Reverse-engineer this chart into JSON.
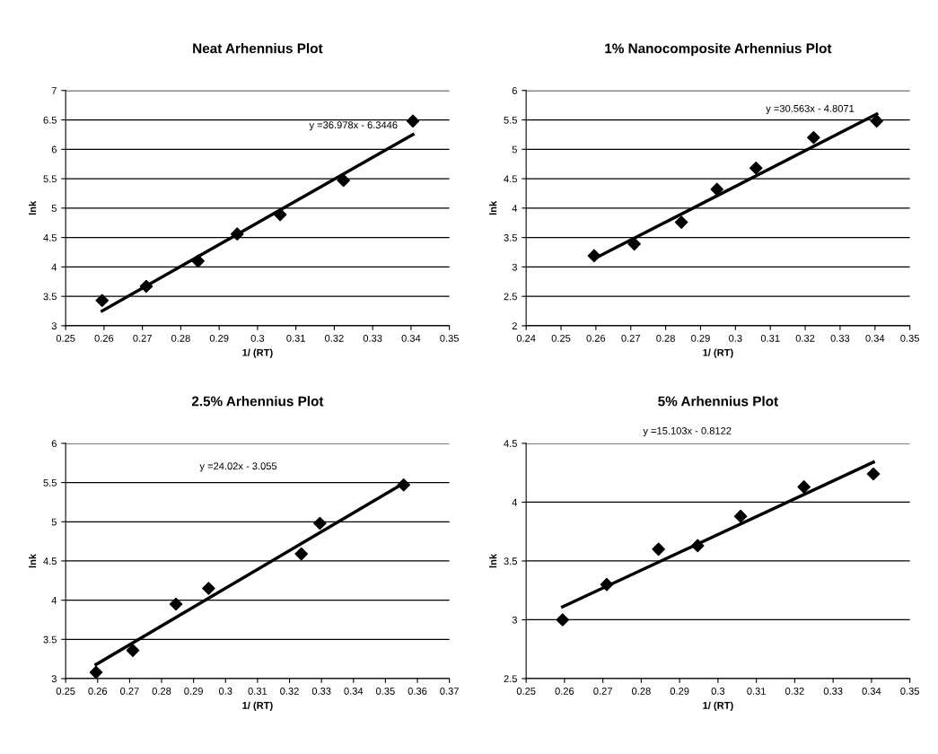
{
  "chart_data": [
    {
      "type": "scatter",
      "title": "Neat Arhennius Plot",
      "xlabel": "1/ (RT)",
      "ylabel": "lnk",
      "xlim": [
        0.25,
        0.35
      ],
      "xticks": [
        0.25,
        0.26,
        0.27,
        0.28,
        0.29,
        0.3,
        0.31,
        0.32,
        0.33,
        0.34,
        0.35
      ],
      "ylim": [
        3,
        7
      ],
      "yticks": [
        3,
        3.5,
        4,
        4.5,
        5,
        5.5,
        6,
        6.5,
        7
      ],
      "grid": "y",
      "legend": false,
      "marker": "diamond",
      "series": [
        {
          "color": "#000000",
          "x": [
            0.2595,
            0.271,
            0.2845,
            0.2947,
            0.3059,
            0.3224,
            0.3405
          ],
          "values": [
            3.43,
            3.67,
            4.1,
            4.56,
            4.89,
            5.47,
            6.48
          ]
        },
        {
          "type": "line",
          "color": "#000000",
          "marker": "none",
          "line_style": "solid",
          "x": [
            0.2595,
            0.3405
          ],
          "values": [
            3.25,
            6.25
          ]
        }
      ],
      "annotations": [
        "y =36.978x - 6.3446"
      ]
    },
    {
      "type": "scatter",
      "title": "1% Nanocomposite Arhennius Plot",
      "xlabel": "1/ (RT)",
      "ylabel": "lnk",
      "xlim": [
        0.24,
        0.35
      ],
      "xticks": [
        0.24,
        0.25,
        0.26,
        0.27,
        0.28,
        0.29,
        0.3,
        0.31,
        0.32,
        0.33,
        0.34,
        0.35
      ],
      "ylim": [
        2,
        6
      ],
      "yticks": [
        2,
        2.5,
        3,
        3.5,
        4,
        4.5,
        5,
        5.5,
        6
      ],
      "grid": "y",
      "legend": false,
      "marker": "diamond",
      "series": [
        {
          "color": "#000000",
          "x": [
            0.2595,
            0.271,
            0.2845,
            0.2947,
            0.3059,
            0.3224,
            0.3405
          ],
          "values": [
            3.19,
            3.39,
            3.76,
            4.32,
            4.68,
            5.2,
            5.48
          ]
        },
        {
          "type": "line",
          "color": "#000000",
          "marker": "none",
          "line_style": "solid",
          "x": [
            0.2595,
            0.3405
          ],
          "values": [
            3.14,
            5.6
          ]
        }
      ],
      "annotations": [
        "y =30.563x - 4.8071"
      ]
    },
    {
      "type": "scatter",
      "title": "2.5% Arhennius Plot",
      "xlabel": "1/ (RT)",
      "ylabel": "lnk",
      "xlim": [
        0.25,
        0.37
      ],
      "xticks": [
        0.25,
        0.26,
        0.27,
        0.28,
        0.29,
        0.3,
        0.31,
        0.32,
        0.33,
        0.34,
        0.35,
        0.36,
        0.37
      ],
      "ylim": [
        3,
        6
      ],
      "yticks": [
        3,
        3.5,
        4,
        4.5,
        5,
        5.5,
        6
      ],
      "grid": "y",
      "legend": false,
      "marker": "diamond",
      "series": [
        {
          "color": "#000000",
          "x": [
            0.2595,
            0.271,
            0.2845,
            0.2947,
            0.3237,
            0.3295,
            0.3557
          ],
          "values": [
            3.08,
            3.36,
            3.95,
            4.15,
            4.59,
            4.98,
            5.47
          ]
        },
        {
          "type": "line",
          "color": "#000000",
          "marker": "none",
          "line_style": "solid",
          "x": [
            0.2595,
            0.3557
          ],
          "values": [
            3.18,
            5.49
          ]
        }
      ],
      "annotations": [
        "y =24.02x - 3.055"
      ]
    },
    {
      "type": "scatter",
      "title": "5% Arhennius Plot",
      "xlabel": "1/ (RT)",
      "ylabel": "lnk",
      "xlim": [
        0.25,
        0.35
      ],
      "xticks": [
        0.25,
        0.26,
        0.27,
        0.28,
        0.29,
        0.3,
        0.31,
        0.32,
        0.33,
        0.34,
        0.35
      ],
      "ylim": [
        2.5,
        4.5
      ],
      "yticks": [
        2.5,
        3,
        3.5,
        4,
        4.5
      ],
      "grid": "y",
      "legend": false,
      "marker": "diamond",
      "series": [
        {
          "color": "#000000",
          "x": [
            0.2595,
            0.271,
            0.2845,
            0.2947,
            0.3059,
            0.3224,
            0.3405
          ],
          "values": [
            3.0,
            3.3,
            3.6,
            3.63,
            3.88,
            4.13,
            4.24
          ]
        },
        {
          "type": "line",
          "color": "#000000",
          "marker": "none",
          "line_style": "solid",
          "x": [
            0.2595,
            0.3405
          ],
          "values": [
            3.11,
            4.34
          ]
        }
      ],
      "annotations": [
        "y =15.103x - 0.8122"
      ]
    }
  ]
}
